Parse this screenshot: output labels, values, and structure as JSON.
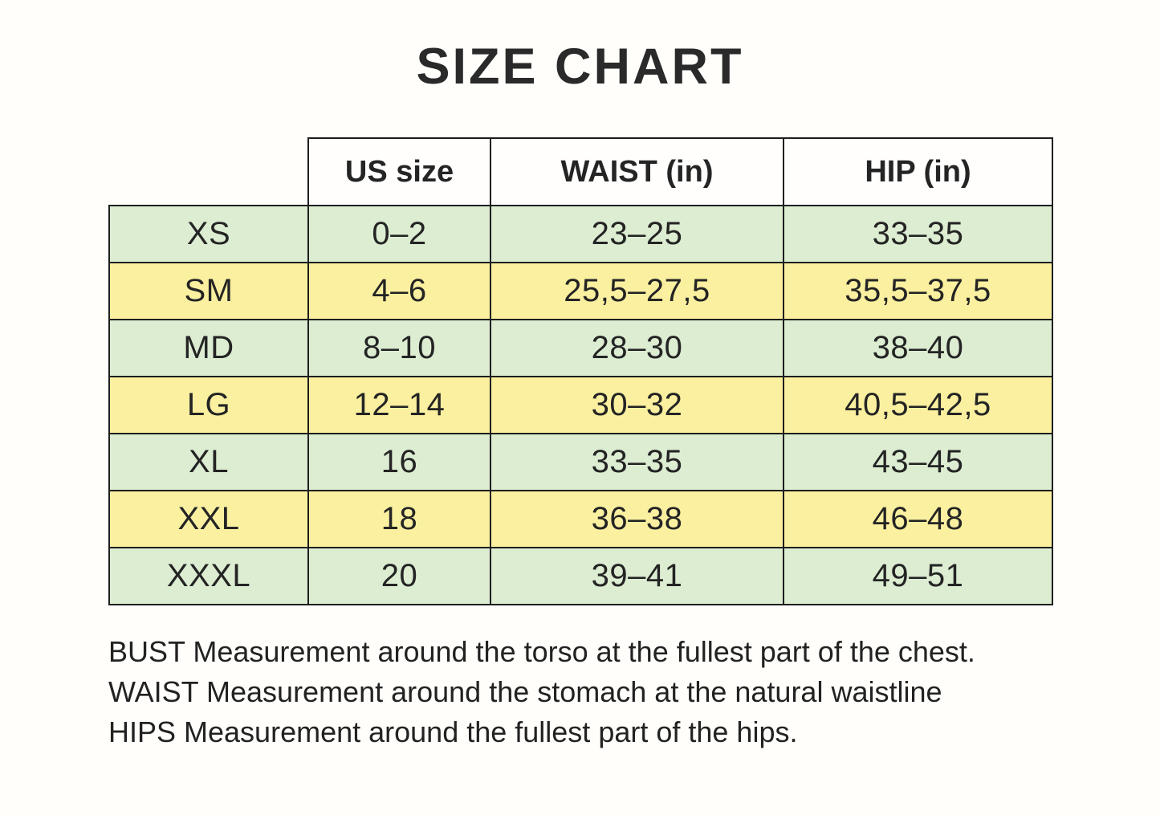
{
  "title": "SIZE CHART",
  "chart_data": {
    "type": "table",
    "title": "SIZE CHART",
    "row_header_label": "",
    "columns": [
      "US size",
      "WAIST (in)",
      "HIP (in)"
    ],
    "rows": [
      [
        "XS",
        "0–2",
        "23–25",
        "33–35"
      ],
      [
        "SM",
        "4–6",
        "25,5–27,5",
        "35,5–37,5"
      ],
      [
        "MD",
        "8–10",
        "28–30",
        "38–40"
      ],
      [
        "LG",
        "12–14",
        "30–32",
        "40,5–42,5"
      ],
      [
        "XL",
        "16",
        "33–35",
        "43–45"
      ],
      [
        "XXL",
        "18",
        "36–38",
        "46–48"
      ],
      [
        "XXXL",
        "20",
        "39–41",
        "49–51"
      ]
    ]
  },
  "notes": [
    "BUST Measurement around the torso at the fullest part of the chest.",
    "WAIST Measurement around the stomach at the natural waistline",
    "HIPS Measurement around the fullest part of the hips."
  ],
  "colors": {
    "row_green": "#dcedd2",
    "row_yellow": "#faf0a0",
    "border": "#1e1e1e",
    "text": "#242424",
    "background": "#fffefa",
    "header_background": "#fffefd"
  }
}
